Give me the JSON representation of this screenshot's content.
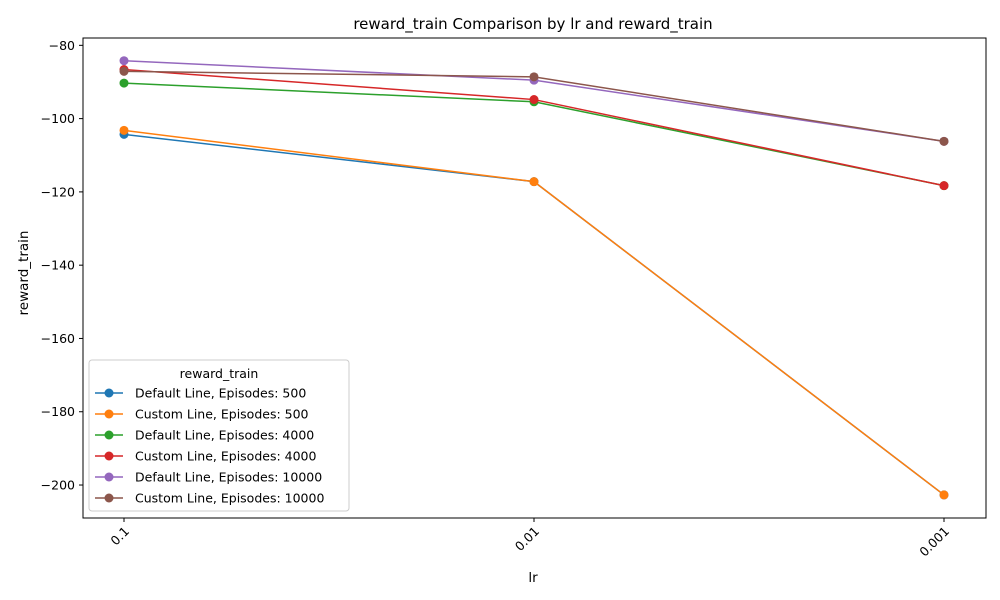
{
  "chart_data": {
    "type": "line",
    "title": "reward_train Comparison by lr and reward_train",
    "xlabel": "lr",
    "ylabel": "reward_train",
    "categories": [
      "0.1",
      "0.01",
      "0.001"
    ],
    "ylim": [
      -209,
      -78
    ],
    "yticks": [
      -80,
      -100,
      -120,
      -140,
      -160,
      -180,
      -200
    ],
    "grid": false,
    "legend": {
      "title": "reward_train",
      "placement": "lower-left"
    },
    "series": [
      {
        "name": "Default Line, Episodes: 500",
        "color": "#1f77b4",
        "values": [
          -104.3,
          -117.2,
          -202.7
        ]
      },
      {
        "name": "Custom Line, Episodes: 500",
        "color": "#ff7f0e",
        "values": [
          -103.2,
          -117.2,
          -202.7
        ]
      },
      {
        "name": "Default Line, Episodes: 4000",
        "color": "#2ca02c",
        "values": [
          -90.3,
          -95.4,
          -118.3
        ]
      },
      {
        "name": "Custom Line, Episodes: 4000",
        "color": "#d62728",
        "values": [
          -86.6,
          -94.8,
          -118.3
        ]
      },
      {
        "name": "Default Line, Episodes: 10000",
        "color": "#9467bd",
        "values": [
          -84.2,
          -89.5,
          -106.2
        ]
      },
      {
        "name": "Custom Line, Episodes: 10000",
        "color": "#8c564b",
        "values": [
          -87.1,
          -88.6,
          -106.2
        ]
      }
    ]
  }
}
